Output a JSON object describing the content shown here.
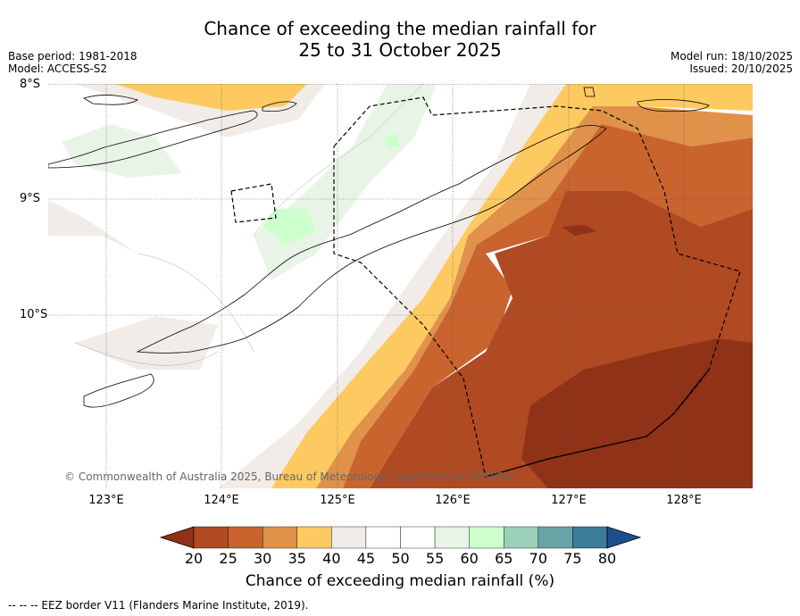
{
  "title": {
    "line1": "Chance of exceeding the median rainfall for",
    "line2": "25 to 31 October 2025"
  },
  "meta": {
    "base_period": "Base period: 1981-2018",
    "model": "Model: ACCESS-S2",
    "model_run": "Model run: 18/10/2025",
    "issued": "Issued: 20/10/2025"
  },
  "map": {
    "lat_labels": [
      "8°S",
      "9°S",
      "10°S"
    ],
    "lon_labels": [
      "123°E",
      "124°E",
      "125°E",
      "126°E",
      "127°E",
      "128°E"
    ],
    "copyright": "© Commonwealth of Australia 2025, Bureau of Meteorology, supported by COSPPac"
  },
  "colorbar": {
    "labels": [
      "20",
      "25",
      "30",
      "35",
      "40",
      "45",
      "50",
      "55",
      "60",
      "65",
      "70",
      "75",
      "80"
    ],
    "colors": [
      "#8f3218",
      "#b04a23",
      "#c9642f",
      "#e0924a",
      "#fdca62",
      "#f1ece7",
      "#ffffff",
      "#ffffff",
      "#e8f5e6",
      "#ccffcc",
      "#9bcfb8",
      "#6aa3a5",
      "#3d7b9b",
      "#1f4e8c"
    ],
    "title": "Chance of exceeding median rainfall (%)"
  },
  "footer": "--  --  -- EEZ border V11 (Flanders Marine Institute, 2019)."
}
